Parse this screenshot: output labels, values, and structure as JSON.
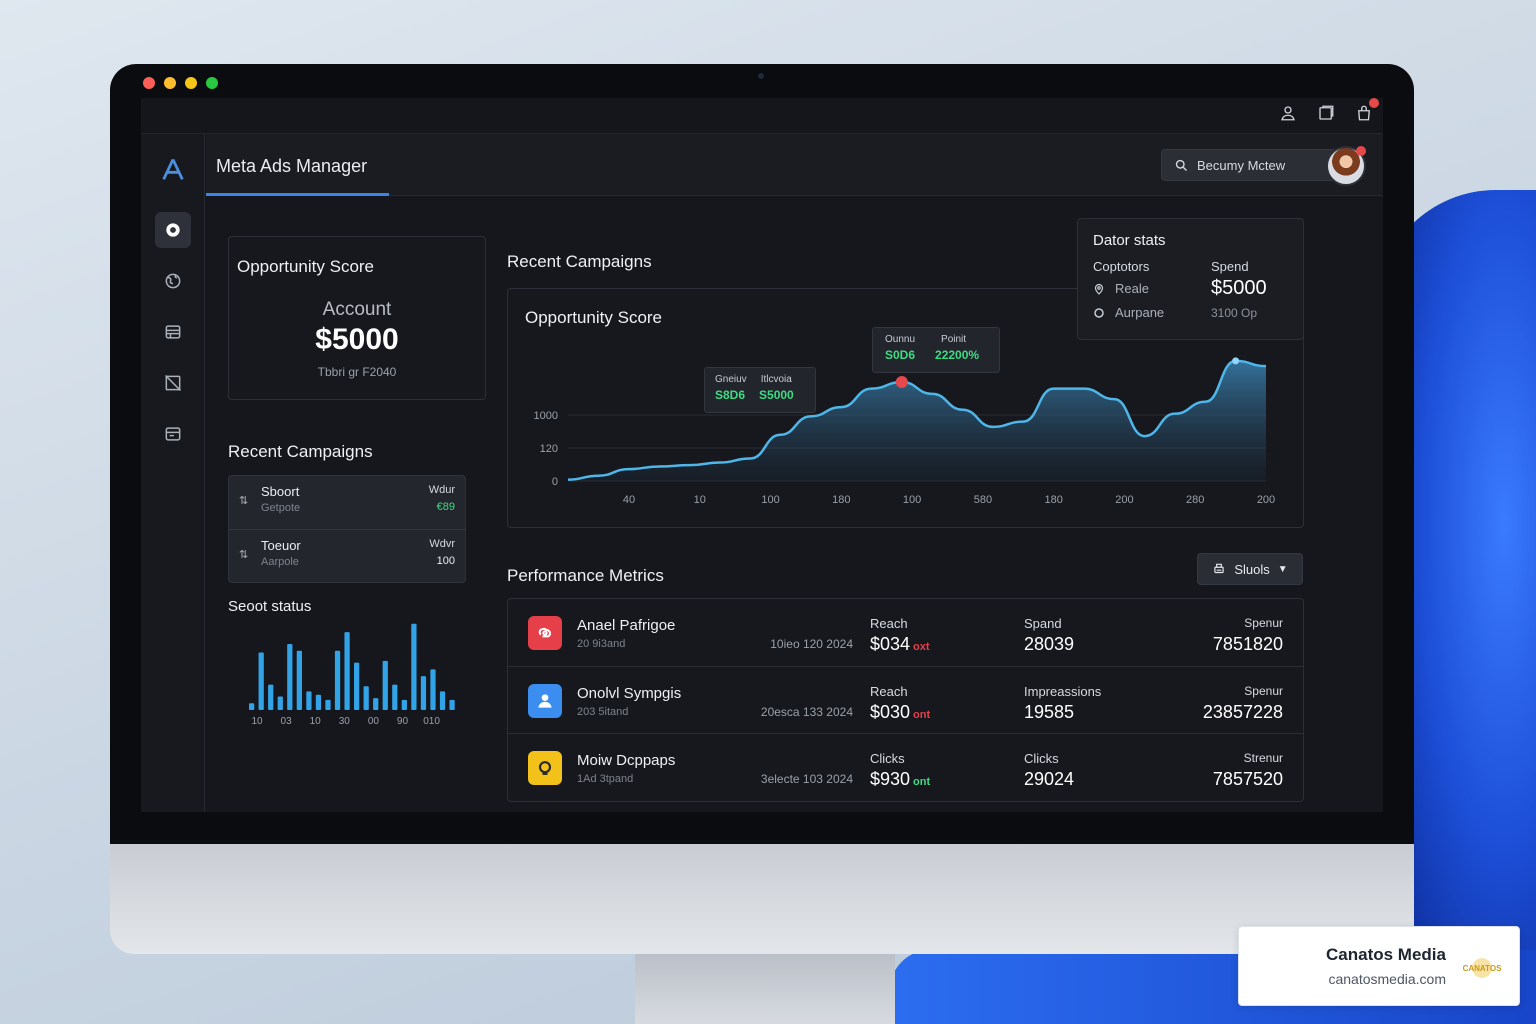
{
  "window": {
    "traffic_lights": [
      "#ff5f57",
      "#febc2e",
      "#28c840",
      "#28c840"
    ]
  },
  "topbar": {
    "icons": [
      "user-icon",
      "square-icon",
      "bag-icon"
    ]
  },
  "sidebar": {
    "items": [
      "home-icon",
      "globe-icon",
      "list-icon",
      "no-image-icon",
      "card-icon"
    ]
  },
  "header": {
    "title": "Meta Ads Manager",
    "search_value": "Becumy Mctew"
  },
  "opportunity_card": {
    "title": "Opportunity Score",
    "label": "Account",
    "value": "$5000",
    "sub": "Tbbri gr F2040"
  },
  "recent_campaigns_left": {
    "title": "Recent Campaigns",
    "items": [
      {
        "name": "Sboort",
        "desc": "Getpote",
        "right_label": "Wdur",
        "right_value": "€89",
        "value_color": "#3ddc84"
      },
      {
        "name": "Toeuor",
        "desc": "Aarpole",
        "right_label": "Wdvr",
        "right_value": "100",
        "value_color": "#e9ecf1"
      }
    ]
  },
  "seoot_status": {
    "title": "Seoot status",
    "x_labels": [
      "10",
      "03",
      "10",
      "30",
      "00",
      "90",
      "010"
    ],
    "values": [
      8,
      68,
      30,
      16,
      78,
      70,
      22,
      18,
      12,
      70,
      92,
      56,
      28,
      14,
      58,
      30,
      12,
      102,
      40,
      48,
      22,
      12
    ],
    "color": "#33a3e8"
  },
  "recent_campaigns_title": "Recent Campaigns",
  "chart_card": {
    "title": "Opportunity Score",
    "tooltip1": {
      "k1": "Gneiuv",
      "k2": "Itlcvoia",
      "v1": "S8D6",
      "v2": "S5000"
    },
    "tooltip2": {
      "k1": "Ounnu",
      "k2": "Poinit",
      "v1": "S0D6",
      "v2": "22200%"
    }
  },
  "chart_data": {
    "type": "area",
    "y_ticks": [
      "0",
      "120",
      "1000"
    ],
    "x_ticks": [
      "40",
      "10",
      "100",
      "180",
      "100",
      "580",
      "180",
      "200",
      "280",
      "200"
    ],
    "series": [
      {
        "values": [
          2,
          8,
          18,
          22,
          24,
          28,
          34,
          70,
          98,
          112,
          140,
          150,
          132,
          108,
          82,
          90,
          140,
          140,
          124,
          68,
          102,
          120,
          182,
          174
        ]
      }
    ],
    "ylim": [
      0,
      200
    ],
    "highlight_index": 11,
    "peak_index": 22,
    "grid": true,
    "line_color": "#4fb6ea"
  },
  "stats_card": {
    "title": "Dator stats",
    "col1_label": "Coptotors",
    "items": [
      {
        "icon": "pin-icon",
        "label": "Reale"
      },
      {
        "icon": "circle-icon",
        "label": "Aurpane"
      }
    ],
    "col2_label": "Spend",
    "col2_value": "$5000",
    "col2_sub": "3100 Op"
  },
  "performance": {
    "title": "Performance Metrics",
    "filter_label": "Sluols",
    "rows": [
      {
        "icon": "red-app-icon",
        "icon_color": "#e5404a",
        "name": "Anael Pafrigoe",
        "sub": "20 9i3and",
        "date": "10ieo 120 2024",
        "m1_label": "Reach",
        "m1_value": "$034",
        "m1_tag": "oxt",
        "m1_tag_color": "#e5404a",
        "m2_label": "Spand",
        "m2_value": "28039",
        "m3_label": "Spenur",
        "m3_value": "7851820"
      },
      {
        "icon": "person-app-icon",
        "icon_color": "#3b8ef0",
        "name": "Onolvl Sympgis",
        "sub": "203 5itand",
        "date": "20esca 133 2024",
        "m1_label": "Reach",
        "m1_value": "$030",
        "m1_tag": "ont",
        "m1_tag_color": "#e5404a",
        "m2_label": "Impreassions",
        "m2_value": "19585",
        "m3_label": "Spenur",
        "m3_value": "23857228"
      },
      {
        "icon": "yellow-app-icon",
        "icon_color": "#f2c21b",
        "name": "Moiw Dcppaps",
        "sub": "1Ad 3tpand",
        "date": "3electe 103 2024",
        "m1_label": "Clicks",
        "m1_value": "$930",
        "m1_tag": "ont",
        "m1_tag_color": "#3ddc84",
        "m2_label": "Clicks",
        "m2_value": "29024",
        "m3_label": "Strenur",
        "m3_value": "7857520"
      }
    ]
  },
  "brand": {
    "name": "Canatos Media",
    "url": "canatosmedia.com",
    "logo_text": "CANATOS"
  }
}
